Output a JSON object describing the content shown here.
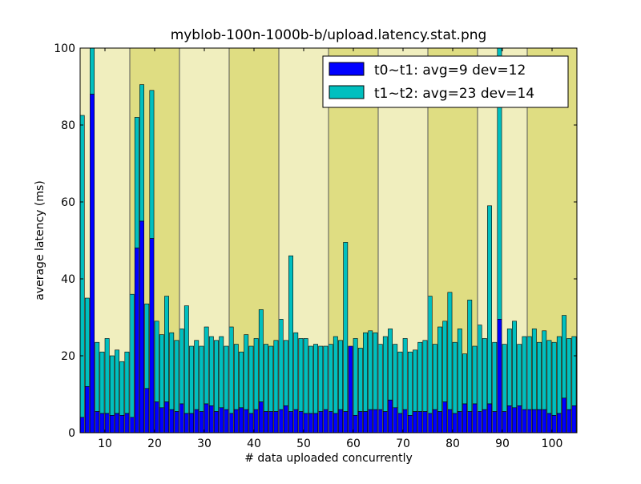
{
  "chart_data": {
    "type": "bar",
    "stacked": true,
    "title": "myblob-100n-1000b-b/upload.latency.stat.png",
    "xlabel": "# data uploaded concurrently",
    "ylabel": "average latency (ms)",
    "xlim": [
      5,
      105
    ],
    "ylim": [
      0,
      100
    ],
    "xticks": [
      10,
      20,
      30,
      40,
      50,
      60,
      70,
      80,
      90,
      100
    ],
    "yticks": [
      0,
      20,
      40,
      60,
      80,
      100
    ],
    "legend_position": "top-right",
    "background_bands": {
      "edges": [
        5,
        15,
        25,
        35,
        45,
        55,
        65,
        75,
        85,
        95,
        105
      ],
      "colors": [
        "#f0eebe",
        "#dfdd82"
      ]
    },
    "x": [
      5,
      6,
      7,
      8,
      9,
      10,
      11,
      12,
      13,
      14,
      15,
      16,
      17,
      18,
      19,
      20,
      21,
      22,
      23,
      24,
      25,
      26,
      27,
      28,
      29,
      30,
      31,
      32,
      33,
      34,
      35,
      36,
      37,
      38,
      39,
      40,
      41,
      42,
      43,
      44,
      45,
      46,
      47,
      48,
      49,
      50,
      51,
      52,
      53,
      54,
      55,
      56,
      57,
      58,
      59,
      60,
      61,
      62,
      63,
      64,
      65,
      66,
      67,
      68,
      69,
      70,
      71,
      72,
      73,
      74,
      75,
      76,
      77,
      78,
      79,
      80,
      81,
      82,
      83,
      84,
      85,
      86,
      87,
      88,
      89,
      90,
      91,
      92,
      93,
      94,
      95,
      96,
      97,
      98,
      99,
      100,
      101,
      102,
      103,
      104
    ],
    "series": [
      {
        "name": "t0~t1: avg=9 dev=12",
        "color": "#0000ff",
        "values": [
          4,
          12,
          88,
          5.5,
          5,
          5,
          4.5,
          5,
          4.5,
          5,
          4,
          48,
          55,
          11.5,
          50.5,
          8,
          6.5,
          8,
          6,
          5.5,
          7.5,
          5,
          5,
          6,
          5.5,
          7.5,
          7,
          5.5,
          6.5,
          6,
          5,
          6,
          6.5,
          6,
          5,
          6,
          8,
          5.5,
          5.5,
          5.5,
          6,
          7,
          5.5,
          6,
          5.5,
          5,
          5,
          5,
          5.5,
          6,
          5.5,
          5,
          6,
          5.5,
          22.5,
          4.5,
          5.5,
          5.5,
          6,
          6,
          6,
          5.5,
          8.5,
          6.5,
          5,
          6,
          4.5,
          5.5,
          5.5,
          5.5,
          5,
          6,
          5.5,
          8,
          6,
          5,
          5.5,
          7.5,
          5.5,
          7.5,
          5.5,
          6,
          7.5,
          5.5,
          29.5,
          5.5,
          7,
          6.5,
          7,
          6,
          6,
          6,
          6,
          6,
          5,
          4.5,
          5,
          9,
          6,
          7
        ],
        "totals": [
          82.5,
          35,
          100,
          23.5,
          21,
          24.5,
          20,
          21.5,
          18.5,
          21,
          36,
          82,
          90.5,
          33.5,
          89,
          29,
          25.5,
          35.5,
          26,
          24,
          27,
          33,
          22.5,
          24,
          22.5,
          27.5,
          25,
          24,
          25,
          22.5,
          27.5,
          23,
          21,
          25.5,
          22.5,
          24.5,
          32,
          23,
          22.5,
          24,
          29.5,
          24,
          46,
          26,
          24.5,
          24.5,
          22.5,
          23,
          22.5,
          22.5,
          23,
          25,
          24,
          49.5,
          21,
          24.5,
          22,
          26,
          26.5,
          26,
          23,
          25,
          27,
          23,
          21,
          24.5,
          21,
          21.5,
          23.5,
          24,
          35.5,
          23,
          27.5,
          29,
          36.5,
          23.5,
          27,
          20.5,
          34.5,
          22.5,
          28,
          24.5,
          59,
          23.5,
          100,
          23,
          27,
          29,
          23,
          25,
          25,
          27,
          23.5,
          26.5,
          24,
          23.5,
          25,
          30.5,
          24.5,
          25
        ]
      },
      {
        "name": "t1~t2: avg=23 dev=14",
        "color": "#00bfbf"
      }
    ]
  }
}
